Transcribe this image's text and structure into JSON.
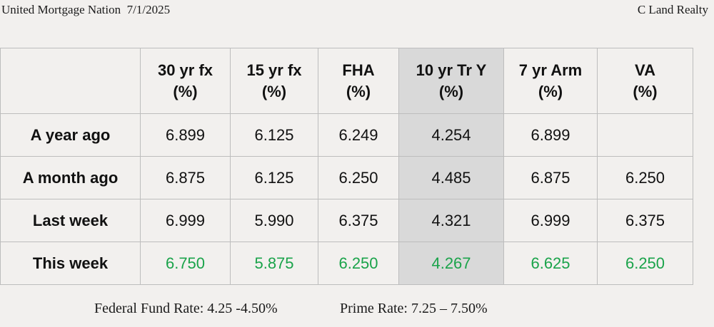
{
  "header": {
    "left": "United Mortgage Nation  7/1/2025",
    "right": "C Land Realty"
  },
  "table": {
    "columns": [
      {
        "line1": "",
        "line2": ""
      },
      {
        "line1": "30 yr fx",
        "line2": "(%)"
      },
      {
        "line1": "15 yr fx",
        "line2": "(%)"
      },
      {
        "line1": "FHA",
        "line2": "(%)"
      },
      {
        "line1": "10 yr Tr Y",
        "line2": "(%)"
      },
      {
        "line1": "7 yr Arm",
        "line2": "(%)"
      },
      {
        "line1": "VA",
        "line2": "(%)"
      }
    ],
    "rows": [
      {
        "label": "A year ago",
        "values": [
          "6.899",
          "6.125",
          "6.249",
          "4.254",
          "6.899",
          ""
        ]
      },
      {
        "label": "A month ago",
        "values": [
          "6.875",
          "6.125",
          "6.250",
          "4.485",
          "6.875",
          "6.250"
        ]
      },
      {
        "label": "Last week",
        "values": [
          "6.999",
          "5.990",
          "6.375",
          "4.321",
          "6.999",
          "6.375"
        ]
      },
      {
        "label": "This week",
        "values": [
          "6.750",
          "5.875",
          "6.250",
          "4.267",
          "6.625",
          "6.250"
        ]
      }
    ],
    "highlight_color": "#1aa34a",
    "shaded_column_color": "#d9d9d9"
  },
  "footer": {
    "federal_fund_rate": "Federal Fund Rate: 4.25 -4.50%",
    "prime_rate": "Prime Rate: 7.25 – 7.50%"
  }
}
